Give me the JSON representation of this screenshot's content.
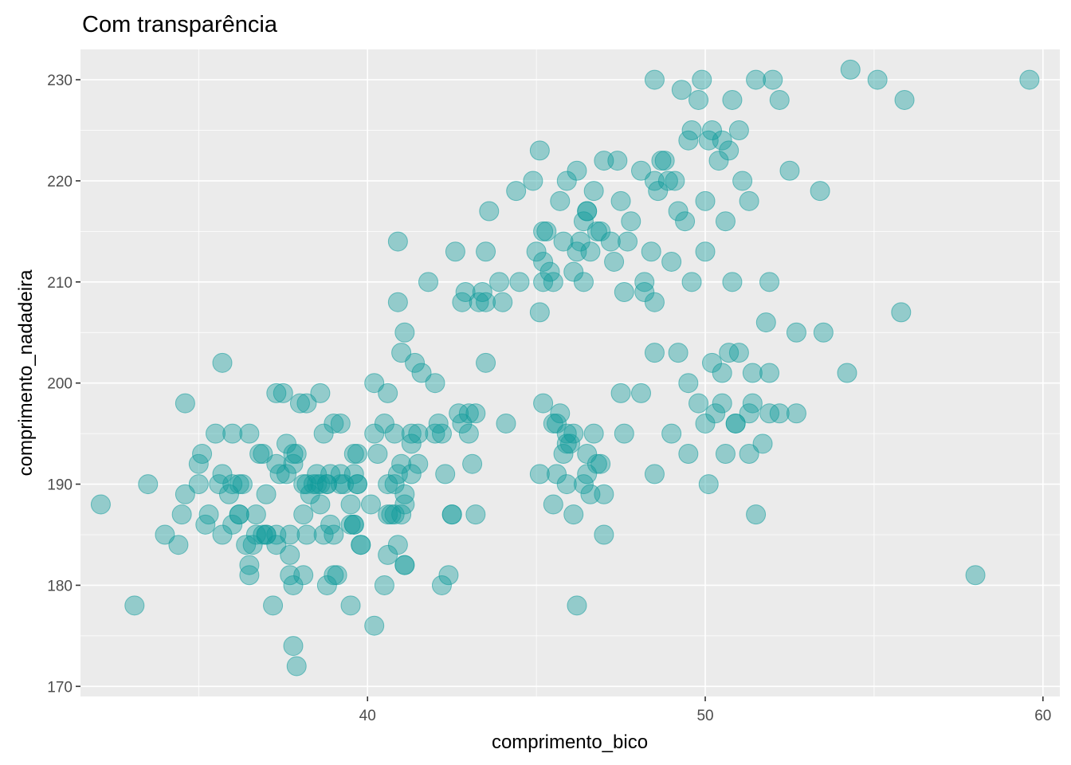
{
  "chart_data": {
    "type": "scatter",
    "title": "Com transparência",
    "xlabel": "comprimento_bico",
    "ylabel": "comprimento_nadadeira",
    "xlim": [
      31.5,
      60.5
    ],
    "ylim": [
      169,
      233
    ],
    "x_ticks": [
      40,
      50,
      60
    ],
    "y_ticks": [
      170,
      180,
      190,
      200,
      210,
      220,
      230
    ],
    "x_tick_labels": [
      "40",
      "50",
      "60"
    ],
    "y_tick_labels": [
      "170",
      "180",
      "190",
      "200",
      "210",
      "220",
      "230"
    ],
    "grid": true,
    "point_color": "#0f9b9b",
    "point_alpha": 0.4,
    "background_color": "#ebebeb",
    "points": [
      [
        32.1,
        188
      ],
      [
        33.1,
        178
      ],
      [
        33.5,
        190
      ],
      [
        34.0,
        185
      ],
      [
        34.4,
        184
      ],
      [
        34.5,
        187
      ],
      [
        34.6,
        198
      ],
      [
        34.6,
        189
      ],
      [
        35.0,
        192
      ],
      [
        35.0,
        190
      ],
      [
        35.1,
        193
      ],
      [
        35.2,
        186
      ],
      [
        35.3,
        187
      ],
      [
        35.5,
        195
      ],
      [
        35.6,
        190
      ],
      [
        35.7,
        191
      ],
      [
        35.7,
        185
      ],
      [
        35.7,
        202
      ],
      [
        35.9,
        189
      ],
      [
        36.0,
        190
      ],
      [
        36.0,
        195
      ],
      [
        36.0,
        186
      ],
      [
        36.2,
        187
      ],
      [
        36.2,
        187
      ],
      [
        36.2,
        190
      ],
      [
        36.3,
        190
      ],
      [
        36.4,
        184
      ],
      [
        36.5,
        182
      ],
      [
        36.5,
        181
      ],
      [
        36.6,
        184
      ],
      [
        36.7,
        185
      ],
      [
        36.7,
        187
      ],
      [
        36.8,
        193
      ],
      [
        36.9,
        193
      ],
      [
        37.0,
        185
      ],
      [
        37.0,
        185
      ],
      [
        37.0,
        189
      ],
      [
        37.2,
        178
      ],
      [
        37.3,
        184
      ],
      [
        37.3,
        192
      ],
      [
        37.3,
        199
      ],
      [
        37.5,
        199
      ],
      [
        37.6,
        191
      ],
      [
        37.6,
        194
      ],
      [
        37.7,
        181
      ],
      [
        37.7,
        185
      ],
      [
        37.7,
        183
      ],
      [
        37.8,
        180
      ],
      [
        37.8,
        174
      ],
      [
        37.8,
        193
      ],
      [
        37.9,
        172
      ],
      [
        37.9,
        193
      ],
      [
        38.1,
        181
      ],
      [
        38.1,
        190
      ],
      [
        38.1,
        187
      ],
      [
        38.2,
        185
      ],
      [
        38.2,
        190
      ],
      [
        38.3,
        189
      ],
      [
        38.5,
        190
      ],
      [
        38.6,
        190
      ],
      [
        38.6,
        188
      ],
      [
        38.6,
        199
      ],
      [
        38.7,
        195
      ],
      [
        38.8,
        190
      ],
      [
        38.8,
        180
      ],
      [
        38.9,
        191
      ],
      [
        39.0,
        181
      ],
      [
        39.0,
        185
      ],
      [
        39.1,
        181
      ],
      [
        39.2,
        190
      ],
      [
        39.2,
        196
      ],
      [
        39.3,
        190
      ],
      [
        39.5,
        178
      ],
      [
        39.5,
        188
      ],
      [
        39.5,
        186
      ],
      [
        39.6,
        191
      ],
      [
        39.6,
        186
      ],
      [
        39.7,
        193
      ],
      [
        39.7,
        190
      ],
      [
        39.8,
        184
      ],
      [
        39.8,
        184
      ],
      [
        40.1,
        188
      ],
      [
        40.2,
        176
      ],
      [
        40.2,
        200
      ],
      [
        40.3,
        193
      ],
      [
        40.5,
        180
      ],
      [
        40.6,
        187
      ],
      [
        40.6,
        183
      ],
      [
        40.7,
        187
      ],
      [
        40.8,
        190
      ],
      [
        40.8,
        195
      ],
      [
        40.9,
        184
      ],
      [
        40.9,
        214
      ],
      [
        41.0,
        187
      ],
      [
        41.0,
        203
      ],
      [
        41.1,
        182
      ],
      [
        41.1,
        182
      ],
      [
        41.1,
        205
      ],
      [
        41.3,
        194
      ],
      [
        41.4,
        202
      ],
      [
        41.5,
        195
      ],
      [
        41.6,
        201
      ],
      [
        41.8,
        210
      ],
      [
        42.0,
        200
      ],
      [
        42.2,
        195
      ],
      [
        42.2,
        180
      ],
      [
        42.3,
        191
      ],
      [
        42.4,
        181
      ],
      [
        42.5,
        187
      ],
      [
        42.5,
        187
      ],
      [
        42.6,
        213
      ],
      [
        42.7,
        197
      ],
      [
        42.8,
        208
      ],
      [
        42.9,
        209
      ],
      [
        43.0,
        195
      ],
      [
        43.2,
        197
      ],
      [
        43.3,
        208
      ],
      [
        43.4,
        209
      ],
      [
        43.5,
        208
      ],
      [
        43.5,
        213
      ],
      [
        43.5,
        202
      ],
      [
        43.6,
        217
      ],
      [
        44.0,
        208
      ],
      [
        44.1,
        196
      ],
      [
        44.4,
        219
      ],
      [
        44.5,
        210
      ],
      [
        45.0,
        213
      ],
      [
        45.1,
        207
      ],
      [
        45.1,
        223
      ],
      [
        45.2,
        212
      ],
      [
        45.2,
        215
      ],
      [
        45.2,
        210
      ],
      [
        45.3,
        215
      ],
      [
        45.4,
        211
      ],
      [
        45.5,
        210
      ],
      [
        45.6,
        196
      ],
      [
        45.7,
        218
      ],
      [
        45.8,
        214
      ],
      [
        45.9,
        194
      ],
      [
        46.0,
        194
      ],
      [
        46.1,
        211
      ],
      [
        46.2,
        221
      ],
      [
        46.2,
        213
      ],
      [
        46.3,
        214
      ],
      [
        46.4,
        216
      ],
      [
        46.5,
        217
      ],
      [
        46.5,
        217
      ],
      [
        46.6,
        213
      ],
      [
        46.7,
        219
      ],
      [
        46.8,
        215
      ],
      [
        46.9,
        215
      ],
      [
        47.0,
        222
      ],
      [
        47.2,
        214
      ],
      [
        47.4,
        222
      ],
      [
        47.5,
        218
      ],
      [
        47.6,
        209
      ],
      [
        47.7,
        214
      ],
      [
        47.8,
        216
      ],
      [
        48.1,
        221
      ],
      [
        48.2,
        210
      ],
      [
        48.4,
        213
      ],
      [
        48.5,
        220
      ],
      [
        48.6,
        219
      ],
      [
        48.7,
        222
      ],
      [
        48.8,
        222
      ],
      [
        48.9,
        220
      ],
      [
        49.0,
        212
      ],
      [
        49.1,
        220
      ],
      [
        49.2,
        217
      ],
      [
        49.4,
        216
      ],
      [
        49.5,
        224
      ],
      [
        49.6,
        225
      ],
      [
        49.8,
        228
      ],
      [
        49.9,
        230
      ],
      [
        50.0,
        218
      ],
      [
        50.1,
        224
      ],
      [
        50.2,
        225
      ],
      [
        50.4,
        222
      ],
      [
        50.5,
        224
      ],
      [
        50.6,
        216
      ],
      [
        50.7,
        223
      ],
      [
        50.8,
        228
      ],
      [
        51.0,
        225
      ],
      [
        51.1,
        220
      ],
      [
        51.3,
        218
      ],
      [
        51.5,
        230
      ],
      [
        52.0,
        230
      ],
      [
        52.2,
        228
      ],
      [
        52.5,
        221
      ],
      [
        53.4,
        219
      ],
      [
        48.5,
        230
      ],
      [
        49.3,
        229
      ],
      [
        45.9,
        220
      ],
      [
        47.3,
        212
      ],
      [
        48.2,
        209
      ],
      [
        44.9,
        220
      ],
      [
        43.9,
        210
      ],
      [
        46.4,
        210
      ],
      [
        48.5,
        208
      ],
      [
        49.6,
        210
      ],
      [
        50.0,
        213
      ],
      [
        50.8,
        210
      ],
      [
        51.9,
        210
      ],
      [
        52.7,
        205
      ],
      [
        51.8,
        206
      ],
      [
        53.5,
        205
      ],
      [
        55.8,
        207
      ],
      [
        48.5,
        203
      ],
      [
        49.2,
        203
      ],
      [
        49.5,
        200
      ],
      [
        50.2,
        202
      ],
      [
        50.5,
        201
      ],
      [
        50.7,
        203
      ],
      [
        51.0,
        203
      ],
      [
        51.4,
        201
      ],
      [
        51.9,
        201
      ],
      [
        54.2,
        201
      ],
      [
        45.2,
        198
      ],
      [
        45.5,
        196
      ],
      [
        45.7,
        197
      ],
      [
        46.1,
        195
      ],
      [
        45.8,
        193
      ],
      [
        45.9,
        195
      ],
      [
        46.4,
        190
      ],
      [
        46.5,
        193
      ],
      [
        46.7,
        195
      ],
      [
        46.8,
        192
      ],
      [
        47.0,
        185
      ],
      [
        47.5,
        199
      ],
      [
        47.6,
        195
      ],
      [
        48.1,
        199
      ],
      [
        48.5,
        191
      ],
      [
        49.0,
        195
      ],
      [
        49.5,
        193
      ],
      [
        49.8,
        198
      ],
      [
        50.0,
        196
      ],
      [
        50.3,
        197
      ],
      [
        50.5,
        198
      ],
      [
        50.9,
        196
      ],
      [
        50.9,
        196
      ],
      [
        51.3,
        197
      ],
      [
        51.4,
        198
      ],
      [
        51.7,
        194
      ],
      [
        51.9,
        197
      ],
      [
        52.2,
        197
      ],
      [
        52.7,
        197
      ],
      [
        50.1,
        190
      ],
      [
        51.5,
        187
      ],
      [
        51.3,
        193
      ],
      [
        50.6,
        193
      ],
      [
        45.1,
        191
      ],
      [
        45.5,
        188
      ],
      [
        45.6,
        191
      ],
      [
        45.9,
        190
      ],
      [
        46.1,
        187
      ],
      [
        46.2,
        178
      ],
      [
        46.5,
        191
      ],
      [
        46.6,
        189
      ],
      [
        46.9,
        192
      ],
      [
        47.0,
        189
      ],
      [
        40.6,
        190
      ],
      [
        40.9,
        191
      ],
      [
        41.1,
        189
      ],
      [
        41.3,
        191
      ],
      [
        41.5,
        192
      ],
      [
        42.0,
        195
      ],
      [
        42.1,
        196
      ],
      [
        43.1,
        192
      ],
      [
        43.2,
        187
      ],
      [
        43.0,
        197
      ],
      [
        42.8,
        196
      ],
      [
        41.3,
        195
      ],
      [
        41.1,
        188
      ],
      [
        41.0,
        192
      ],
      [
        40.5,
        196
      ],
      [
        40.8,
        187
      ],
      [
        40.2,
        195
      ],
      [
        40.6,
        199
      ],
      [
        40.9,
        208
      ],
      [
        39.7,
        190
      ],
      [
        39.6,
        193
      ],
      [
        39.2,
        191
      ],
      [
        39.0,
        196
      ],
      [
        38.8,
        190
      ],
      [
        38.4,
        190
      ],
      [
        38.5,
        191
      ],
      [
        37.8,
        192
      ],
      [
        38.0,
        198
      ],
      [
        38.2,
        198
      ],
      [
        37.4,
        191
      ],
      [
        36.5,
        195
      ],
      [
        36.9,
        185
      ],
      [
        37.3,
        185
      ],
      [
        38.7,
        185
      ],
      [
        38.9,
        186
      ],
      [
        39.6,
        186
      ],
      [
        54.3,
        231
      ],
      [
        55.1,
        230
      ],
      [
        55.9,
        228
      ],
      [
        59.6,
        230
      ],
      [
        58.0,
        181
      ]
    ]
  }
}
